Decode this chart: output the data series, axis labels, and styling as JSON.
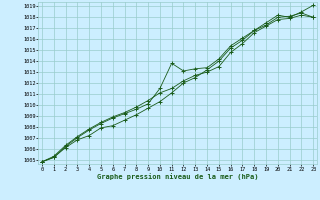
{
  "xlabel": "Graphe pression niveau de la mer (hPa)",
  "x_ticks": [
    0,
    1,
    2,
    3,
    4,
    5,
    6,
    7,
    8,
    9,
    10,
    11,
    12,
    13,
    14,
    15,
    16,
    17,
    18,
    19,
    20,
    21,
    22,
    23
  ],
  "yticks": [
    1005,
    1006,
    1007,
    1008,
    1009,
    1010,
    1011,
    1012,
    1013,
    1014,
    1015,
    1016,
    1017,
    1018,
    1019
  ],
  "bg_color": "#cceeff",
  "grid_color": "#99cccc",
  "line_color": "#1a5c1a",
  "marker": "+",
  "line1": [
    1004.8,
    1005.2,
    1006.1,
    1006.8,
    1007.2,
    1007.9,
    1008.1,
    1008.6,
    1009.1,
    1009.7,
    1010.3,
    1011.1,
    1012.0,
    1012.5,
    1013.2,
    1014.0,
    1015.2,
    1015.9,
    1016.8,
    1017.3,
    1018.0,
    1018.1,
    1018.4,
    1018.0
  ],
  "line2": [
    1004.8,
    1005.2,
    1006.2,
    1007.0,
    1007.7,
    1008.3,
    1008.8,
    1009.2,
    1009.6,
    1010.1,
    1011.5,
    1013.8,
    1013.1,
    1013.3,
    1013.4,
    1014.2,
    1015.4,
    1016.1,
    1016.8,
    1017.5,
    1018.2,
    1018.0,
    1018.5,
    1019.1
  ],
  "line3": [
    1004.8,
    1005.3,
    1006.3,
    1007.1,
    1007.8,
    1008.4,
    1008.9,
    1009.3,
    1009.8,
    1010.4,
    1011.1,
    1011.5,
    1012.2,
    1012.7,
    1013.0,
    1013.5,
    1014.8,
    1015.6,
    1016.6,
    1017.2,
    1017.8,
    1017.9,
    1018.2,
    1018.0
  ],
  "fig_width": 3.2,
  "fig_height": 2.0,
  "dpi": 100
}
